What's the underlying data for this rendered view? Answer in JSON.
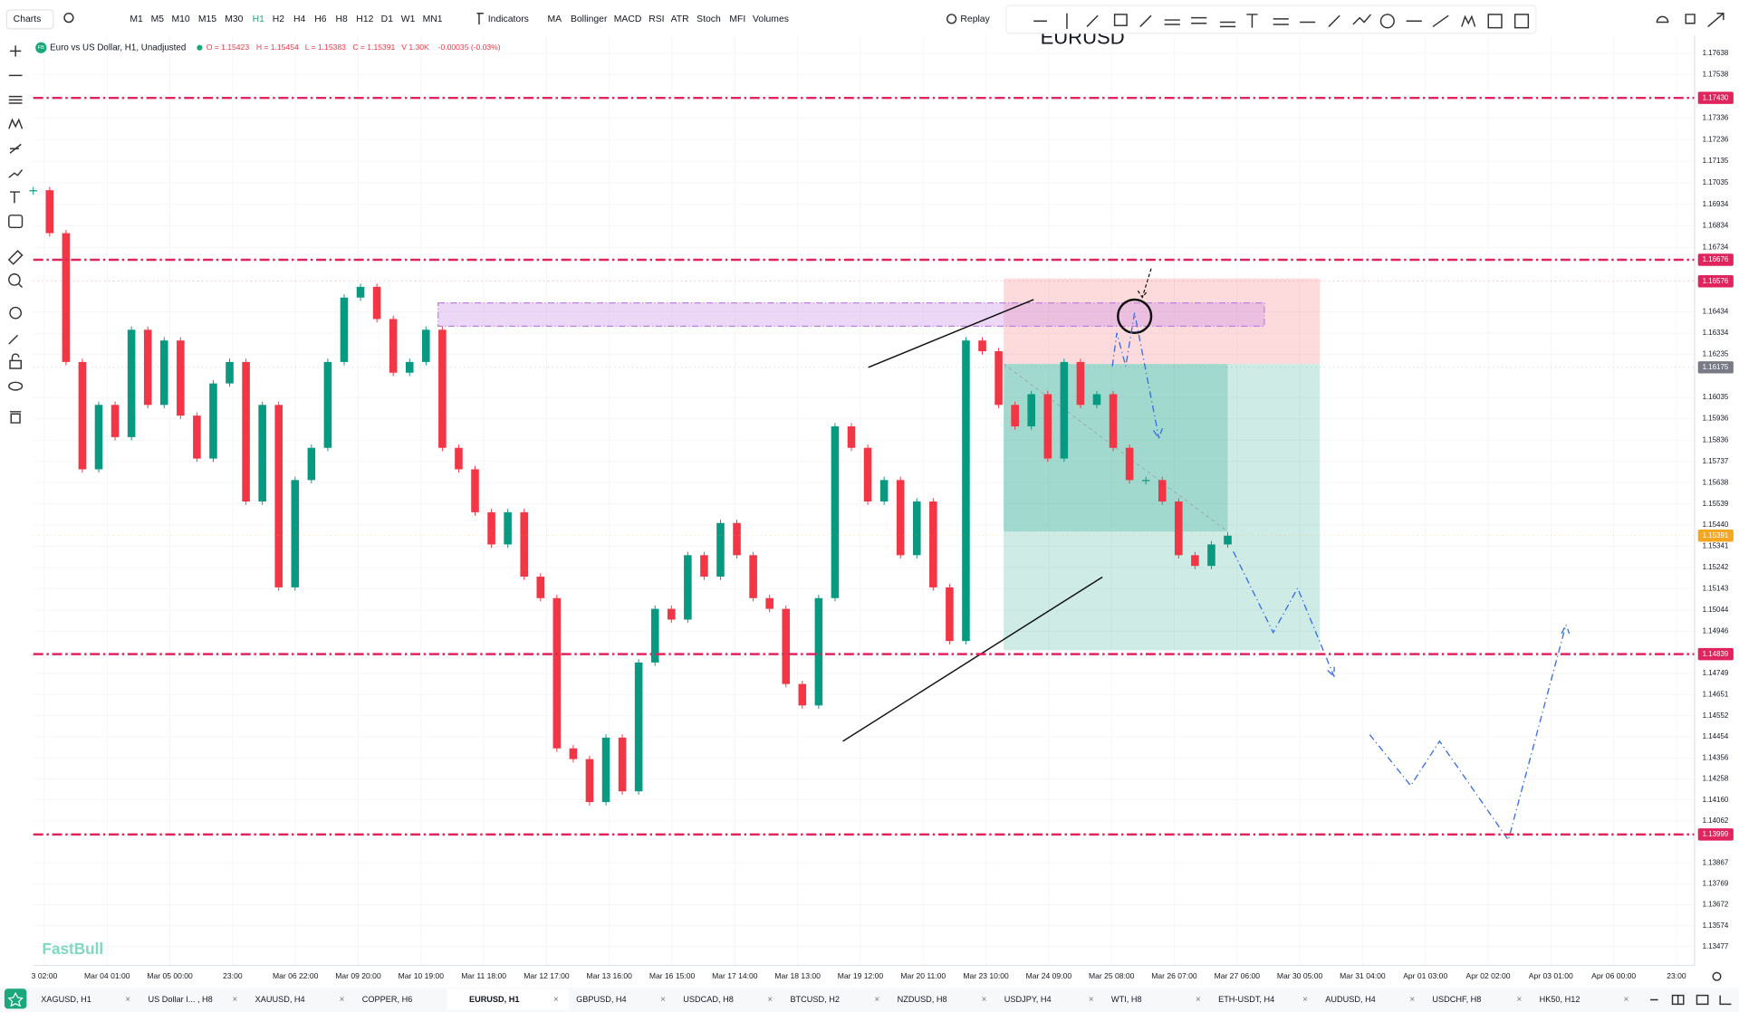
{
  "toolbar": {
    "menu": "Charts",
    "timeframes": [
      "M1",
      "M5",
      "M10",
      "M15",
      "M30",
      "H1",
      "H2",
      "H4",
      "H6",
      "H8",
      "H12",
      "D1",
      "W1",
      "MN1"
    ],
    "active_timeframe": 5,
    "indicators": "Indicators",
    "indicator_buttons": [
      "MA",
      "Bollinger",
      "MACD",
      "RSI",
      "ATR",
      "Stoch",
      "MFI",
      "Volumes"
    ],
    "replay": "Replay"
  },
  "chart": {
    "watermark": "EURUSD",
    "logo": "FastBull",
    "legend": {
      "badge": "FB",
      "symbol": "Euro vs US Dollar, H1, Unadjusted",
      "open": "O = 1.15423",
      "high": "H = 1.15454",
      "low": "L = 1.15383",
      "close": "C = 1.15391",
      "volume": "V 1.30K",
      "change": "-0.00035 (-0.03%)"
    },
    "price_ticks": [
      1.17638,
      1.17538,
      1.17336,
      1.17236,
      1.17135,
      1.17035,
      1.16934,
      1.16834,
      1.16734,
      1.16434,
      1.16334,
      1.16235,
      1.16035,
      1.15936,
      1.15836,
      1.15737,
      1.15638,
      1.15539,
      {
        "value": 1.1544,
        "label": "1.15440"
      },
      1.15341,
      1.15242,
      1.15143,
      1.15044,
      1.14946,
      1.14749,
      1.14651,
      1.14552,
      1.14454,
      1.14356,
      1.14258,
      {
        "value": 1.1416,
        "label": "1.14160"
      },
      1.14062,
      1.13867,
      1.13769,
      1.13672,
      1.13574,
      1.13477
    ],
    "price_levels": [
      {
        "value": 1.1743,
        "label": "1.17430",
        "color": "#e0245e",
        "line": true
      },
      {
        "value": 1.16676,
        "label": "1.16676",
        "color": "#e0245e",
        "line": true
      },
      {
        "value": 1.16576,
        "label": "1.16576",
        "color": "#e0245e",
        "line": false
      },
      {
        "value": 1.16175,
        "label": "1.16175",
        "color": "#787b86",
        "line": false
      },
      {
        "value": 1.15391,
        "label": "1.15391",
        "color": "#f5a623",
        "line": false
      },
      {
        "value": 1.14839,
        "label": "1.14839",
        "color": "#e0245e",
        "line": true
      },
      {
        "value": 1.13999,
        "label": "1.13999",
        "color": "#e0245e",
        "line": true
      }
    ],
    "time_labels": [
      "3 02:00",
      "Mar 04 01:00",
      "Mar 05 00:00",
      "23:00",
      "Mar 06 22:00",
      "Mar 09 20:00",
      "Mar 10 19:00",
      "Mar 11 18:00",
      "Mar 12 17:00",
      "Mar 13 16:00",
      "Mar 16 15:00",
      "Mar 17 14:00",
      "Mar 18 13:00",
      "Mar 19 12:00",
      "Mar 20 11:00",
      "Mar 23 10:00",
      "Mar 24 09:00",
      "Mar 25 08:00",
      "Mar 26 07:00",
      "Mar 27 06:00",
      "Mar 30 05:00",
      "Mar 31 04:00",
      "Apr 01 03:00",
      "Apr 02 02:00",
      "Apr 03 01:00",
      "Apr 06 00:00",
      "23:00"
    ],
    "price_path": [
      1.17,
      1.168,
      1.162,
      1.157,
      1.16,
      1.1585,
      1.1635,
      1.16,
      1.163,
      1.1595,
      1.1575,
      1.161,
      1.162,
      1.1555,
      1.16,
      1.1515,
      1.1565,
      1.158,
      1.162,
      1.165,
      1.1655,
      1.164,
      1.1615,
      1.162,
      1.1635,
      1.158,
      1.157,
      1.155,
      1.1535,
      1.155,
      1.152,
      1.151,
      1.144,
      1.1435,
      1.1415,
      1.1445,
      1.142,
      1.148,
      1.1505,
      1.15,
      1.153,
      1.152,
      1.1545,
      1.153,
      1.151,
      1.1505,
      1.147,
      1.146,
      1.151,
      1.159,
      1.158,
      1.1555,
      1.1565,
      1.153,
      1.1555,
      1.1515,
      1.149,
      1.163,
      1.1625,
      1.16,
      1.159,
      1.1605,
      1.1575,
      1.162,
      1.16,
      1.1605,
      1.158,
      1.1565,
      1.1565,
      1.1555,
      1.153,
      1.1525,
      1.1535,
      1.15391
    ]
  },
  "tabs": [
    "XAGUSD, H1",
    "US Dollar I... , H8",
    "XAUUSD, H4",
    "COPPER, H6",
    "EURUSD, H1",
    "GBPUSD, H4",
    "USDCAD, H8",
    "BTCUSD, H2",
    "NZDUSD, H8",
    "USDJPY, H4",
    "WTI, H8",
    "ETH-USDT, H4",
    "AUDUSD, H4",
    "USDCHF, H8",
    "HK50, H12"
  ],
  "active_tab": 4
}
